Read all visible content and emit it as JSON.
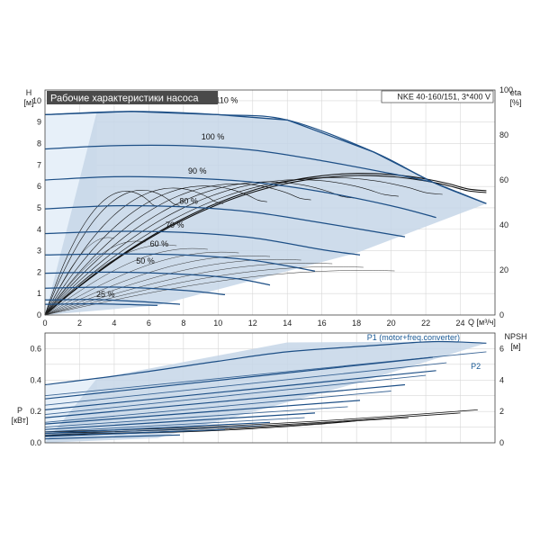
{
  "colors": {
    "curve": "#1d4f86",
    "region": "#c5d6e8",
    "region_light": "#e7f0f9",
    "eta_curve": "#111111",
    "title_bg": "#4a4a4a"
  },
  "chart_data": [
    {
      "type": "line",
      "title": "Рабочие характеристики насоса",
      "subtitle": "NKE 40-160/151, 3*400 V",
      "xlabel": "Q [м³/ч]",
      "ylabel_top": "H",
      "ylabel_unit": "[м]",
      "y2label_top": "eta",
      "y2label_unit": "[%]",
      "xlim": [
        0,
        26
      ],
      "ylim": [
        0,
        10.5
      ],
      "y2lim": [
        0,
        100
      ],
      "xticks": [
        "0",
        "2",
        "4",
        "6",
        "8",
        "10",
        "12",
        "14",
        "16",
        "18",
        "20",
        "22",
        "24"
      ],
      "yticks": [
        "0",
        "1",
        "2",
        "3",
        "4",
        "5",
        "6",
        "7",
        "8",
        "9",
        "10"
      ],
      "y2ticks": [
        "0",
        "20",
        "40",
        "60",
        "80",
        "100"
      ],
      "speed_labels": [
        {
          "text": "110 %",
          "x": 10.5,
          "y": 9.8
        },
        {
          "text": "100 %",
          "x": 9.7,
          "y": 8.1
        },
        {
          "text": "90 %",
          "x": 8.8,
          "y": 6.5
        },
        {
          "text": "80 %",
          "x": 8.3,
          "y": 5.1
        },
        {
          "text": "70 %",
          "x": 7.5,
          "y": 4.0
        },
        {
          "text": "60 %",
          "x": 6.6,
          "y": 3.1
        },
        {
          "text": "50 %",
          "x": 5.8,
          "y": 2.3
        },
        {
          "text": "25 %",
          "x": 3.5,
          "y": 0.75
        }
      ],
      "speeds": [
        1.1,
        1.0,
        0.9,
        0.8,
        0.7,
        0.6,
        0.5,
        0.4,
        0.3,
        0.25
      ],
      "h_curves": [
        {
          "speed": 1.1,
          "q": [
            0,
            5,
            10,
            14,
            19,
            22.4,
            25.5
          ],
          "h": [
            9.35,
            9.5,
            9.35,
            9.1,
            7.6,
            6.2,
            5.2
          ]
        },
        {
          "speed": 1.0,
          "q": [
            0,
            4,
            8,
            12,
            16,
            20,
            22.4
          ],
          "h": [
            7.75,
            7.9,
            7.9,
            7.7,
            7.2,
            6.6,
            6.2
          ]
        },
        {
          "speed": 0.9,
          "q": [
            0,
            4,
            8,
            12,
            16,
            20,
            22.6
          ],
          "h": [
            6.3,
            6.45,
            6.4,
            6.2,
            5.75,
            5.1,
            4.55
          ]
        },
        {
          "speed": 0.8,
          "q": [
            0,
            4,
            8,
            12,
            16,
            20.8
          ],
          "h": [
            4.95,
            5.1,
            5.05,
            4.8,
            4.3,
            3.65
          ]
        },
        {
          "speed": 0.7,
          "q": [
            0,
            4,
            8,
            12,
            16,
            18.2
          ],
          "h": [
            3.8,
            3.9,
            3.85,
            3.6,
            3.05,
            2.8
          ]
        },
        {
          "speed": 0.6,
          "q": [
            0,
            4,
            8,
            12,
            15.6
          ],
          "h": [
            2.8,
            2.85,
            2.8,
            2.55,
            2.05
          ]
        },
        {
          "speed": 0.5,
          "q": [
            0,
            4,
            8,
            11,
            13
          ],
          "h": [
            1.95,
            2.0,
            1.9,
            1.7,
            1.4
          ]
        },
        {
          "speed": 0.4,
          "q": [
            0,
            4,
            8,
            10.4
          ],
          "h": [
            1.25,
            1.3,
            1.15,
            0.95
          ]
        },
        {
          "speed": 0.3,
          "q": [
            0,
            3,
            6,
            7.8
          ],
          "h": [
            0.7,
            0.72,
            0.6,
            0.5
          ]
        },
        {
          "speed": 0.25,
          "q": [
            0,
            3,
            6.5
          ],
          "h": [
            0.5,
            0.52,
            0.45
          ]
        }
      ],
      "region_light": {
        "q": [
          0,
          0,
          3,
          3,
          0
        ],
        "h": [
          0,
          9.35,
          9.5,
          1.0,
          0
        ]
      },
      "region": {
        "q": [
          0,
          3,
          5,
          10,
          14,
          19,
          22.4,
          25.5,
          18,
          6.5,
          0
        ],
        "h": [
          0,
          9.5,
          9.5,
          9.35,
          9.1,
          7.6,
          6.2,
          5.2,
          2.9,
          0.45,
          0
        ]
      },
      "eta_max": 62,
      "eta_qmax_full": 25.5,
      "eta_qmax_min": 6.5
    },
    {
      "type": "line",
      "title": "",
      "ylabel_top": "P",
      "ylabel_unit": "[кВт]",
      "y2label_top": "NPSH",
      "y2label_unit": "[м]",
      "xlim": [
        0,
        26
      ],
      "ylim": [
        0,
        0.7
      ],
      "y2lim": [
        0,
        7
      ],
      "yticks": [
        "0.0",
        "0.2",
        "0.4",
        "0.6"
      ],
      "y2ticks": [
        "0",
        "2",
        "4",
        "6"
      ],
      "series_labels": [
        {
          "text": "P1 (motor+freq.converter)",
          "x": 18.6,
          "y": 0.655
        },
        {
          "text": "P2",
          "x": 24.6,
          "y": 0.47
        }
      ],
      "p1_curves": [
        {
          "speed": 1.1,
          "q": [
            0,
            5,
            10,
            14,
            19,
            22.4,
            25.5
          ],
          "p": [
            0.37,
            0.44,
            0.52,
            0.58,
            0.62,
            0.645,
            0.635
          ]
        },
        {
          "speed": 1.0,
          "q": [
            0,
            22.4
          ],
          "p": [
            0.28,
            0.545
          ]
        },
        {
          "speed": 0.9,
          "q": [
            0,
            22.6
          ],
          "p": [
            0.21,
            0.46
          ]
        },
        {
          "speed": 0.8,
          "q": [
            0,
            20.8
          ],
          "p": [
            0.16,
            0.37
          ]
        },
        {
          "speed": 0.7,
          "q": [
            0,
            18.2
          ],
          "p": [
            0.12,
            0.27
          ]
        },
        {
          "speed": 0.6,
          "q": [
            0,
            15.6
          ],
          "p": [
            0.085,
            0.19
          ]
        },
        {
          "speed": 0.5,
          "q": [
            0,
            13
          ],
          "p": [
            0.06,
            0.13
          ]
        },
        {
          "speed": 0.4,
          "q": [
            0,
            10.4
          ],
          "p": [
            0.04,
            0.085
          ]
        },
        {
          "speed": 0.3,
          "q": [
            0,
            7.8
          ],
          "p": [
            0.025,
            0.05
          ]
        }
      ],
      "p2_curves": [
        {
          "speed": 1.1,
          "q": [
            0,
            25.5
          ],
          "p": [
            0.3,
            0.58
          ]
        },
        {
          "speed": 1.0,
          "q": [
            0,
            23.2
          ],
          "p": [
            0.24,
            0.51
          ]
        },
        {
          "speed": 0.9,
          "q": [
            0,
            22
          ],
          "p": [
            0.18,
            0.43
          ]
        },
        {
          "speed": 0.8,
          "q": [
            0,
            20
          ],
          "p": [
            0.13,
            0.33
          ]
        },
        {
          "speed": 0.7,
          "q": [
            0,
            17.5
          ],
          "p": [
            0.1,
            0.23
          ]
        },
        {
          "speed": 0.6,
          "q": [
            0,
            15
          ],
          "p": [
            0.07,
            0.16
          ]
        },
        {
          "speed": 0.5,
          "q": [
            0,
            12.5
          ],
          "p": [
            0.05,
            0.11
          ]
        }
      ],
      "region": {
        "q": [
          0,
          3,
          14,
          22.4,
          25.5,
          18,
          6.5,
          0
        ],
        "p": [
          0.0,
          0.41,
          0.64,
          0.645,
          0.635,
          0.38,
          0.03,
          0.0
        ]
      },
      "region_light": {
        "q": [
          0,
          0,
          3,
          3,
          0
        ],
        "p": [
          0,
          0.37,
          0.41,
          0.02,
          0
        ]
      },
      "npsh_curves": [
        {
          "q": [
            0,
            8,
            16,
            20,
            25
          ],
          "npsh": [
            0.7,
            0.95,
            1.4,
            1.7,
            2.1
          ]
        },
        {
          "q": [
            0,
            8,
            16,
            20,
            24
          ],
          "npsh": [
            0.6,
            0.85,
            1.3,
            1.6,
            1.9
          ]
        },
        {
          "q": [
            0,
            8,
            14,
            18,
            21
          ],
          "npsh": [
            0.5,
            0.75,
            1.1,
            1.4,
            1.6
          ]
        },
        {
          "q": [
            0,
            8,
            12,
            16,
            18
          ],
          "npsh": [
            0.45,
            0.7,
            0.9,
            1.2,
            1.4
          ]
        }
      ]
    }
  ]
}
